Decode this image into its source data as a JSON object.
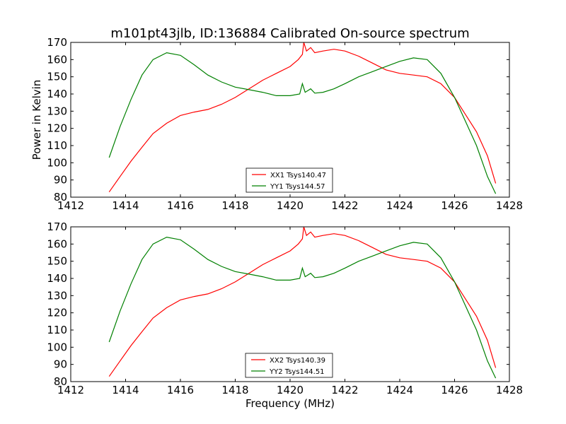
{
  "figure_title": "m101pt43jlb, ID:136884 Calibrated On-source spectrum",
  "chart_data": [
    {
      "type": "line",
      "xlabel": "",
      "ylabel": "Power in Kelvin",
      "xlim": [
        1412,
        1428
      ],
      "ylim": [
        80,
        170
      ],
      "xticks": [
        1412,
        1414,
        1416,
        1418,
        1420,
        1422,
        1424,
        1426,
        1428
      ],
      "yticks": [
        80,
        90,
        100,
        110,
        120,
        130,
        140,
        150,
        160,
        170
      ],
      "legend_position": "lower-center",
      "series": [
        {
          "name": "XX1 Tsys140.47",
          "color": "#ff0000",
          "points": [
            [
              1413.4,
              83
            ],
            [
              1413.8,
              92
            ],
            [
              1414.2,
              101
            ],
            [
              1414.6,
              109
            ],
            [
              1415,
              117
            ],
            [
              1415.5,
              123
            ],
            [
              1416,
              127.5
            ],
            [
              1416.5,
              129.5
            ],
            [
              1417,
              131
            ],
            [
              1417.5,
              134
            ],
            [
              1418,
              138
            ],
            [
              1418.5,
              143
            ],
            [
              1419,
              148
            ],
            [
              1419.5,
              152
            ],
            [
              1420,
              156
            ],
            [
              1420.3,
              160
            ],
            [
              1420.45,
              163
            ],
            [
              1420.5,
              170
            ],
            [
              1420.6,
              165
            ],
            [
              1420.75,
              167
            ],
            [
              1420.9,
              164
            ],
            [
              1421.2,
              165
            ],
            [
              1421.6,
              166
            ],
            [
              1422,
              165
            ],
            [
              1422.5,
              162
            ],
            [
              1423,
              158
            ],
            [
              1423.5,
              154
            ],
            [
              1424,
              152
            ],
            [
              1424.5,
              151
            ],
            [
              1425,
              150
            ],
            [
              1425.5,
              146
            ],
            [
              1426,
              138
            ],
            [
              1426.4,
              128
            ],
            [
              1426.8,
              118
            ],
            [
              1427.2,
              104
            ],
            [
              1427.5,
              88
            ]
          ]
        },
        {
          "name": "YY1 Tsys144.57",
          "color": "#008000",
          "points": [
            [
              1413.4,
              103
            ],
            [
              1413.8,
              121
            ],
            [
              1414.2,
              137
            ],
            [
              1414.6,
              151
            ],
            [
              1415,
              160
            ],
            [
              1415.5,
              164
            ],
            [
              1416,
              162.5
            ],
            [
              1416.5,
              157
            ],
            [
              1417,
              151
            ],
            [
              1417.5,
              147
            ],
            [
              1418,
              144
            ],
            [
              1418.5,
              142.5
            ],
            [
              1419,
              141
            ],
            [
              1419.5,
              139
            ],
            [
              1420,
              139
            ],
            [
              1420.35,
              140
            ],
            [
              1420.45,
              146
            ],
            [
              1420.55,
              141
            ],
            [
              1420.75,
              143
            ],
            [
              1420.9,
              140.5
            ],
            [
              1421.2,
              141
            ],
            [
              1421.6,
              143
            ],
            [
              1422,
              146
            ],
            [
              1422.5,
              150
            ],
            [
              1423,
              153
            ],
            [
              1423.5,
              156
            ],
            [
              1424,
              159
            ],
            [
              1424.5,
              161
            ],
            [
              1425,
              160
            ],
            [
              1425.5,
              152
            ],
            [
              1426,
              138
            ],
            [
              1426.4,
              124
            ],
            [
              1426.8,
              110
            ],
            [
              1427.2,
              92
            ],
            [
              1427.5,
              82
            ]
          ]
        }
      ]
    },
    {
      "type": "line",
      "xlabel": "Frequency (MHz)",
      "ylabel": "",
      "xlim": [
        1412,
        1428
      ],
      "ylim": [
        80,
        170
      ],
      "xticks": [
        1412,
        1414,
        1416,
        1418,
        1420,
        1422,
        1424,
        1426,
        1428
      ],
      "yticks": [
        80,
        90,
        100,
        110,
        120,
        130,
        140,
        150,
        160,
        170
      ],
      "legend_position": "lower-center",
      "series": [
        {
          "name": "XX2 Tsys140.39",
          "color": "#ff0000",
          "points": [
            [
              1413.4,
              83
            ],
            [
              1413.8,
              92
            ],
            [
              1414.2,
              101
            ],
            [
              1414.6,
              109
            ],
            [
              1415,
              117
            ],
            [
              1415.5,
              123
            ],
            [
              1416,
              127.5
            ],
            [
              1416.5,
              129.5
            ],
            [
              1417,
              131
            ],
            [
              1417.5,
              134
            ],
            [
              1418,
              138
            ],
            [
              1418.5,
              143
            ],
            [
              1419,
              148
            ],
            [
              1419.5,
              152
            ],
            [
              1420,
              156
            ],
            [
              1420.3,
              160
            ],
            [
              1420.45,
              163
            ],
            [
              1420.5,
              170
            ],
            [
              1420.6,
              165
            ],
            [
              1420.75,
              167
            ],
            [
              1420.9,
              164
            ],
            [
              1421.2,
              165
            ],
            [
              1421.6,
              166
            ],
            [
              1422,
              165
            ],
            [
              1422.5,
              162
            ],
            [
              1423,
              158
            ],
            [
              1423.5,
              154
            ],
            [
              1424,
              152
            ],
            [
              1424.5,
              151
            ],
            [
              1425,
              150
            ],
            [
              1425.5,
              146
            ],
            [
              1426,
              138
            ],
            [
              1426.4,
              128
            ],
            [
              1426.8,
              118
            ],
            [
              1427.2,
              104
            ],
            [
              1427.5,
              88
            ]
          ]
        },
        {
          "name": "YY2 Tsys144.51",
          "color": "#008000",
          "points": [
            [
              1413.4,
              103
            ],
            [
              1413.8,
              121
            ],
            [
              1414.2,
              137
            ],
            [
              1414.6,
              151
            ],
            [
              1415,
              160
            ],
            [
              1415.5,
              164
            ],
            [
              1416,
              162.5
            ],
            [
              1416.5,
              157
            ],
            [
              1417,
              151
            ],
            [
              1417.5,
              147
            ],
            [
              1418,
              144
            ],
            [
              1418.5,
              142.5
            ],
            [
              1419,
              141
            ],
            [
              1419.5,
              139
            ],
            [
              1420,
              139
            ],
            [
              1420.35,
              140
            ],
            [
              1420.45,
              146
            ],
            [
              1420.55,
              141
            ],
            [
              1420.75,
              143
            ],
            [
              1420.9,
              140.5
            ],
            [
              1421.2,
              141
            ],
            [
              1421.6,
              143
            ],
            [
              1422,
              146
            ],
            [
              1422.5,
              150
            ],
            [
              1423,
              153
            ],
            [
              1423.5,
              156
            ],
            [
              1424,
              159
            ],
            [
              1424.5,
              161
            ],
            [
              1425,
              160
            ],
            [
              1425.5,
              152
            ],
            [
              1426,
              138
            ],
            [
              1426.4,
              124
            ],
            [
              1426.8,
              110
            ],
            [
              1427.2,
              92
            ],
            [
              1427.5,
              82
            ]
          ]
        }
      ]
    }
  ]
}
